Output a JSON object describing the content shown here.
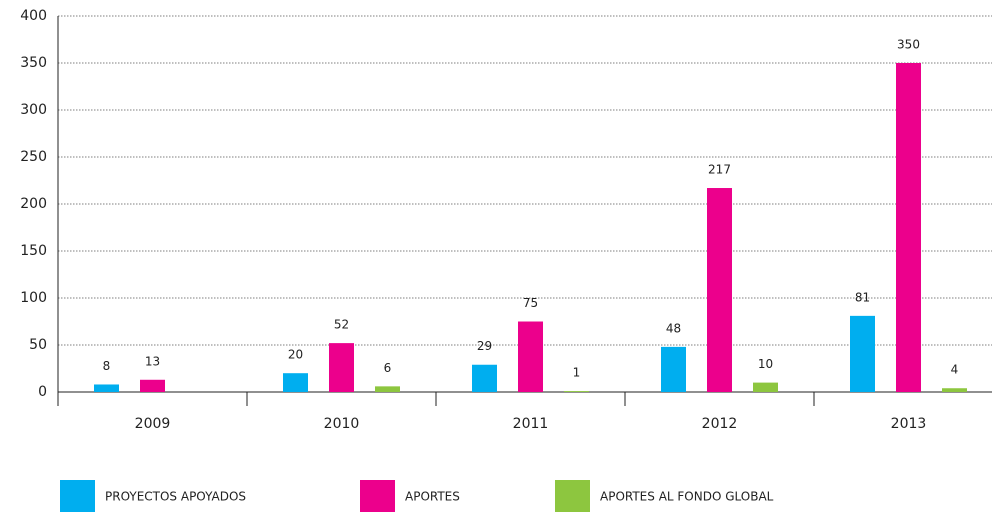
{
  "chart_data": {
    "type": "bar",
    "categories": [
      "2009",
      "2010",
      "2011",
      "2012",
      "2013"
    ],
    "series": [
      {
        "name": "PROYECTOS APOYADOS",
        "color": "#00aeef",
        "values": [
          8,
          20,
          29,
          48,
          81
        ]
      },
      {
        "name": "APORTES",
        "color": "#ec008c",
        "values": [
          13,
          52,
          75,
          217,
          350
        ]
      },
      {
        "name": "APORTES AL FONDO GLOBAL",
        "color": "#8dc63f",
        "values": [
          null,
          6,
          1,
          10,
          4
        ]
      }
    ],
    "ylim": [
      0,
      400
    ],
    "yticks": [
      0,
      50,
      100,
      150,
      200,
      250,
      300,
      350,
      400
    ],
    "grid": true,
    "legend": "bottom"
  }
}
